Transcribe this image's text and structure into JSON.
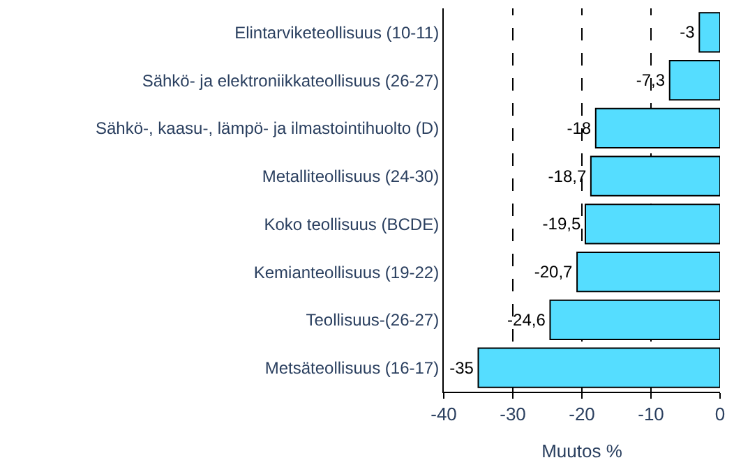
{
  "chart_data": {
    "type": "bar",
    "orientation": "horizontal",
    "xlabel": "Muutos %",
    "categories": [
      "Elintarviketeollisuus (10-11)",
      "Sähkö- ja elektroniikkateollisuus (26-27)",
      "Sähkö-, kaasu-, lämpö- ja ilmastointihuolto (D)",
      "Metalliteollisuus (24-30)",
      "Koko teollisuus (BCDE)",
      "Kemianteollisuus (19-22)",
      "Teollisuus-(26-27)",
      "Metsäteollisuus (16-17)"
    ],
    "values": [
      -3,
      -7.3,
      -18,
      -18.7,
      -19.5,
      -20.7,
      -24.6,
      -35
    ],
    "value_labels": [
      "-3",
      "-7,3",
      "-18",
      "-18,7",
      "-19,5",
      "-20,7",
      "-24,6",
      "-35"
    ],
    "color": "#55ddff",
    "xlim": [
      -40,
      0
    ],
    "xticks": [
      -40,
      -30,
      -20,
      -10,
      0
    ],
    "grid": "x",
    "legend": false
  }
}
